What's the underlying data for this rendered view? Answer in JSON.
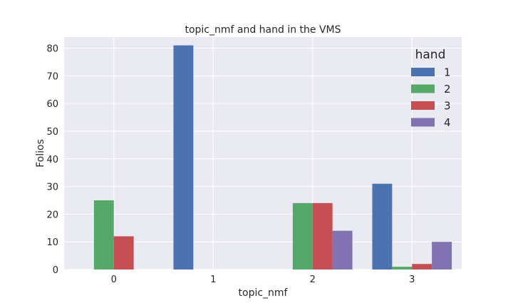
{
  "chart_data": {
    "type": "bar",
    "title": "topic_nmf and hand in the VMS",
    "xlabel": "topic_nmf",
    "ylabel": "Folios",
    "categories": [
      "0",
      "1",
      "2",
      "3"
    ],
    "ylim": [
      0,
      84
    ],
    "yticks": [
      0,
      10,
      20,
      30,
      40,
      50,
      60,
      70,
      80
    ],
    "grid": true,
    "legend": {
      "title": "hand",
      "placement": "top-right"
    },
    "series": [
      {
        "name": "1",
        "color": "#4c72b0",
        "values": [
          0,
          81,
          0,
          31
        ]
      },
      {
        "name": "2",
        "color": "#55a868",
        "values": [
          25,
          0,
          24,
          1
        ]
      },
      {
        "name": "3",
        "color": "#c44e52",
        "values": [
          12,
          0,
          24,
          2
        ]
      },
      {
        "name": "4",
        "color": "#8172b2",
        "values": [
          0,
          0,
          14,
          10
        ]
      }
    ]
  },
  "style": {
    "plot_background": "#eaeaf2",
    "grid_color": "#ffffff",
    "text_color": "#262626"
  }
}
